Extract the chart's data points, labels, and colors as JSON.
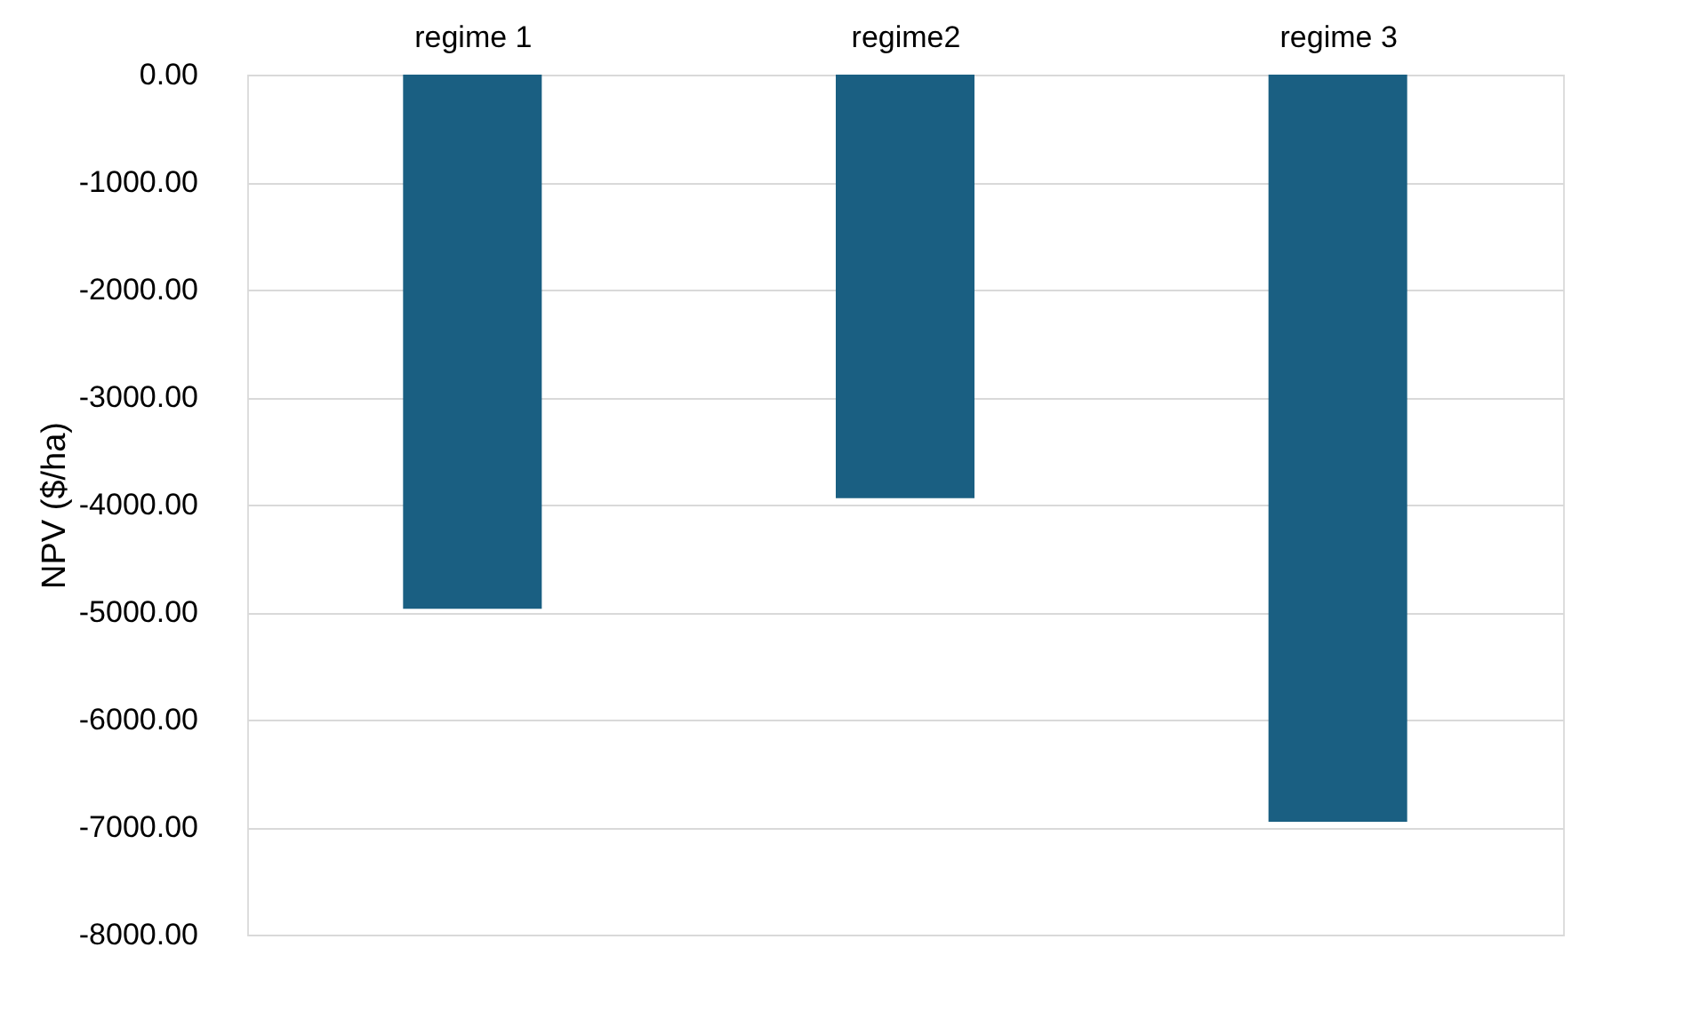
{
  "chart_data": {
    "type": "bar",
    "ylabel": "NPV ($/ha)",
    "categories": [
      "regime 1",
      "regime2",
      "regime 3"
    ],
    "values": [
      -4970,
      -3940,
      -6950
    ],
    "color": "#1a5f82",
    "ylim": [
      -8000,
      0
    ],
    "yticks": [
      {
        "value": 0,
        "label": "0.00"
      },
      {
        "value": -1000,
        "label": "-1000.00"
      },
      {
        "value": -2000,
        "label": "-2000.00"
      },
      {
        "value": -3000,
        "label": "-3000.00"
      },
      {
        "value": -4000,
        "label": "-4000.00"
      },
      {
        "value": -5000,
        "label": "-5000.00"
      },
      {
        "value": -6000,
        "label": "-6000.00"
      },
      {
        "value": -7000,
        "label": "-7000.00"
      },
      {
        "value": -8000,
        "label": "-8000.00"
      }
    ],
    "grid": "y"
  }
}
